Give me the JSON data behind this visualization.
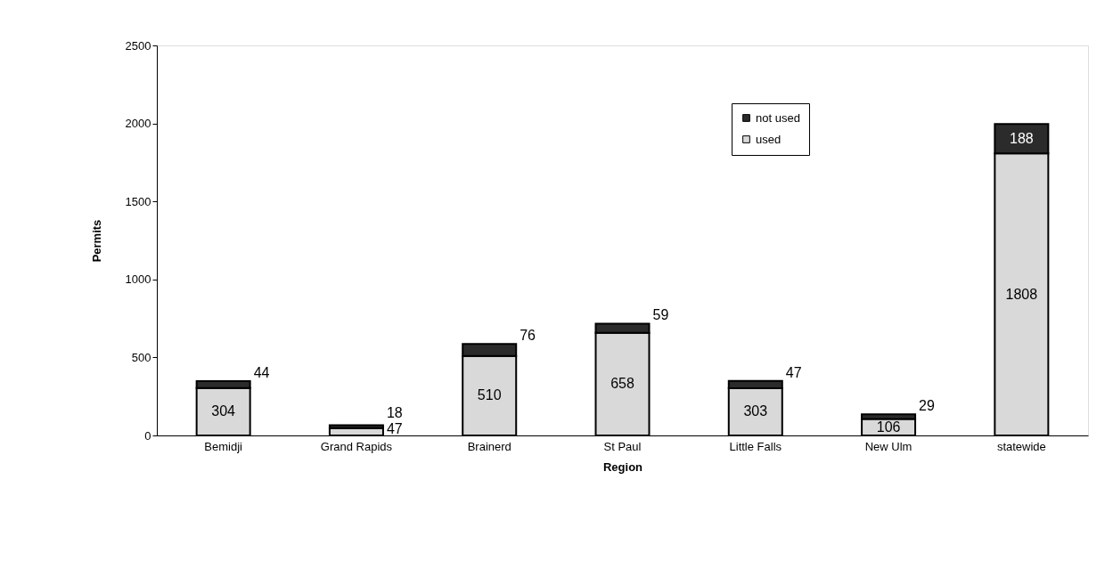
{
  "chart_data": {
    "type": "bar",
    "stacked": true,
    "xlabel": "Region",
    "ylabel": "Permits",
    "categories": [
      "Bemidji",
      "Grand Rapids",
      "Brainerd",
      "St Paul",
      "Little Falls",
      "New Ulm",
      "statewide"
    ],
    "series": [
      {
        "name": "used",
        "color": "#d9d9d9",
        "values": [
          304,
          47,
          510,
          658,
          303,
          106,
          1808
        ]
      },
      {
        "name": "not used",
        "color": "#2b2b2b",
        "values": [
          44,
          18,
          76,
          59,
          47,
          29,
          188
        ]
      }
    ],
    "data_labels": true,
    "ylim": [
      0,
      2500
    ],
    "yticks": [
      0,
      500,
      1000,
      1500,
      2000,
      2500
    ],
    "grid": false,
    "legend": "top right"
  }
}
